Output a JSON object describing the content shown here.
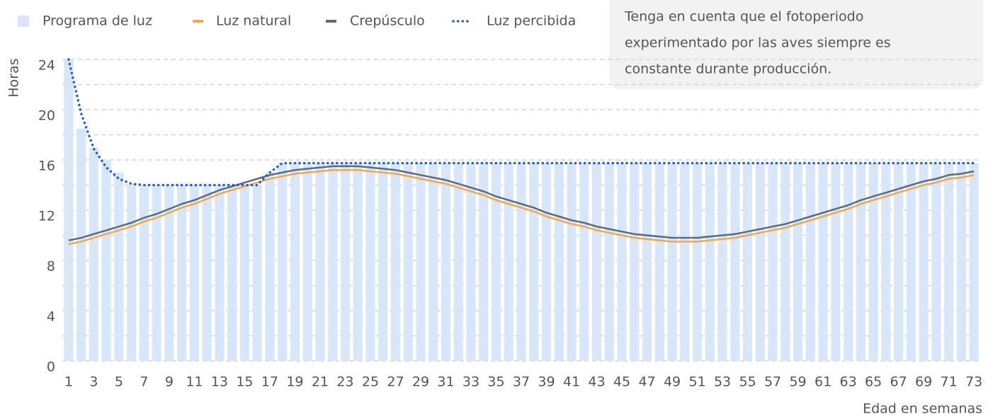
{
  "chart_data": {
    "type": "combo",
    "ylabel": "Horas",
    "xlabel": "Edad en semanas",
    "annotation": [
      "Tenga en cuenta que el fotoperiodo",
      "experimentado por las aves siempre es",
      "constante durante producción."
    ],
    "x": [
      1,
      2,
      3,
      4,
      5,
      6,
      7,
      8,
      9,
      10,
      11,
      12,
      13,
      14,
      15,
      16,
      17,
      18,
      19,
      20,
      21,
      22,
      23,
      24,
      25,
      26,
      27,
      28,
      29,
      30,
      31,
      32,
      33,
      34,
      35,
      36,
      37,
      38,
      39,
      40,
      41,
      42,
      43,
      44,
      45,
      46,
      47,
      48,
      49,
      50,
      51,
      52,
      53,
      54,
      55,
      56,
      57,
      58,
      59,
      60,
      61,
      62,
      63,
      64,
      65,
      66,
      67,
      68,
      69,
      70,
      71,
      72,
      73
    ],
    "xlim": [
      0.5,
      73.5
    ],
    "xticks": [
      1,
      3,
      5,
      7,
      9,
      11,
      13,
      15,
      17,
      19,
      21,
      23,
      25,
      27,
      29,
      31,
      33,
      35,
      37,
      39,
      41,
      43,
      45,
      47,
      49,
      51,
      53,
      55,
      57,
      59,
      61,
      63,
      65,
      67,
      69,
      71,
      73
    ],
    "ylim": [
      0,
      24
    ],
    "yticks": [
      0,
      4,
      8,
      12,
      16,
      20,
      24
    ],
    "minor_yticks": [
      2,
      6,
      10,
      14,
      18,
      22
    ],
    "grid": true,
    "legend": "top",
    "series": [
      {
        "name": "Programa de luz",
        "type": "bar",
        "color": "#d7e7f9",
        "values": [
          24,
          18.5,
          17,
          16,
          15,
          14,
          14,
          14,
          14,
          14,
          14,
          14,
          14,
          14,
          14,
          14,
          15,
          15.75,
          15.75,
          15.75,
          15.75,
          15.75,
          15.75,
          15.75,
          15.75,
          15.75,
          15.75,
          15.75,
          15.75,
          15.75,
          15.75,
          15.75,
          15.75,
          15.75,
          15.75,
          15.75,
          15.75,
          15.75,
          15.75,
          15.75,
          15.75,
          15.75,
          15.75,
          15.75,
          15.75,
          15.75,
          15.75,
          15.75,
          15.75,
          15.75,
          15.75,
          15.75,
          15.75,
          15.75,
          15.75,
          15.75,
          15.75,
          15.75,
          15.75,
          15.75,
          15.75,
          15.75,
          15.75,
          15.75,
          15.75,
          15.75,
          15.75,
          15.75,
          15.75,
          15.75,
          15.75,
          15.75,
          15.75
        ]
      },
      {
        "name": "Luz natural",
        "type": "line",
        "style": "solid",
        "color": "#f2a74a",
        "values": [
          9.3,
          9.5,
          9.8,
          10.1,
          10.4,
          10.7,
          11.1,
          11.4,
          11.8,
          12.2,
          12.5,
          12.9,
          13.3,
          13.6,
          13.9,
          14.2,
          14.5,
          14.7,
          14.9,
          15.0,
          15.1,
          15.2,
          15.2,
          15.2,
          15.1,
          15.0,
          14.9,
          14.7,
          14.5,
          14.3,
          14.1,
          13.8,
          13.5,
          13.2,
          12.8,
          12.5,
          12.2,
          11.9,
          11.5,
          11.2,
          10.9,
          10.7,
          10.4,
          10.2,
          10.0,
          9.8,
          9.7,
          9.6,
          9.5,
          9.5,
          9.5,
          9.6,
          9.7,
          9.8,
          10.0,
          10.2,
          10.4,
          10.6,
          10.9,
          11.2,
          11.5,
          11.8,
          12.1,
          12.5,
          12.8,
          13.1,
          13.4,
          13.7,
          14.0,
          14.2,
          14.5,
          14.6,
          14.8
        ]
      },
      {
        "name": "Crepúsculo",
        "type": "line",
        "style": "solid",
        "color": "#5a6a80",
        "values": [
          9.6,
          9.8,
          10.1,
          10.4,
          10.7,
          11.0,
          11.4,
          11.7,
          12.1,
          12.5,
          12.8,
          13.2,
          13.6,
          13.9,
          14.2,
          14.5,
          14.8,
          15.0,
          15.2,
          15.3,
          15.4,
          15.5,
          15.5,
          15.5,
          15.4,
          15.3,
          15.2,
          15.0,
          14.8,
          14.6,
          14.4,
          14.1,
          13.8,
          13.5,
          13.1,
          12.8,
          12.5,
          12.2,
          11.8,
          11.5,
          11.2,
          11.0,
          10.7,
          10.5,
          10.3,
          10.1,
          10.0,
          9.9,
          9.8,
          9.8,
          9.8,
          9.9,
          10.0,
          10.1,
          10.3,
          10.5,
          10.7,
          10.9,
          11.2,
          11.5,
          11.8,
          12.1,
          12.4,
          12.8,
          13.1,
          13.4,
          13.7,
          14.0,
          14.3,
          14.5,
          14.8,
          14.9,
          15.1
        ]
      },
      {
        "name": "Luz percibida",
        "type": "line",
        "style": "dotted",
        "color": "#1f5fcf",
        "values": [
          24,
          19.7,
          16.9,
          15.4,
          14.5,
          14.1,
          14,
          14,
          14,
          14,
          14,
          14,
          14,
          14,
          14,
          14,
          15,
          15.75,
          15.75,
          15.75,
          15.75,
          15.75,
          15.75,
          15.75,
          15.75,
          15.75,
          15.75,
          15.75,
          15.75,
          15.75,
          15.75,
          15.75,
          15.75,
          15.75,
          15.75,
          15.75,
          15.75,
          15.75,
          15.75,
          15.75,
          15.75,
          15.75,
          15.75,
          15.75,
          15.75,
          15.75,
          15.75,
          15.75,
          15.75,
          15.75,
          15.75,
          15.75,
          15.75,
          15.75,
          15.75,
          15.75,
          15.75,
          15.75,
          15.75,
          15.75,
          15.75,
          15.75,
          15.75,
          15.75,
          15.75,
          15.75,
          15.75,
          15.75,
          15.75,
          15.75,
          15.75,
          15.75,
          15.75
        ]
      }
    ]
  }
}
